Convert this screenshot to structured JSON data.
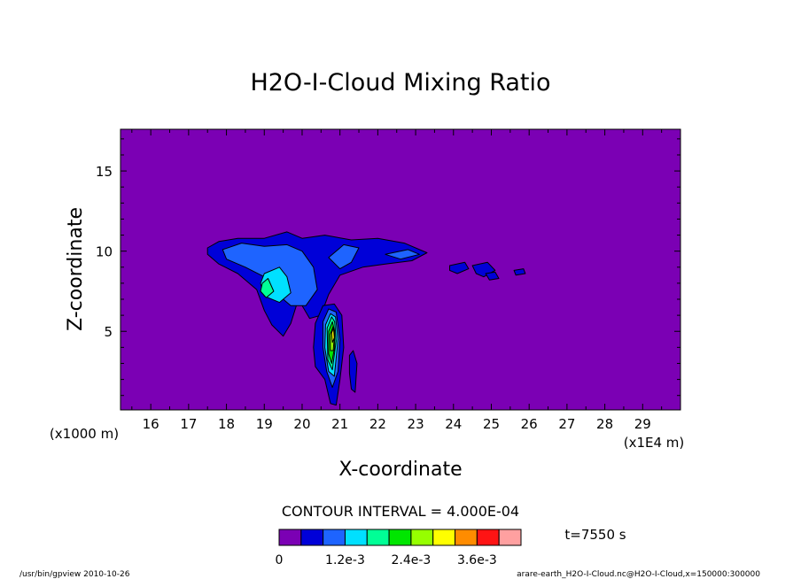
{
  "chart_data": {
    "type": "heatmap",
    "title": "H2O-I-Cloud Mixing Ratio",
    "xlabel": "X-coordinate",
    "ylabel": "Z-coordinate",
    "x_unit_label": "(x1E4 m)",
    "y_unit_label": "(x1000 m)",
    "xlim": [
      15.2,
      30.0
    ],
    "ylim": [
      0.1,
      17.6
    ],
    "x_ticks": [
      16,
      17,
      18,
      19,
      20,
      21,
      22,
      23,
      24,
      25,
      26,
      27,
      28,
      29
    ],
    "y_ticks": [
      5,
      10,
      15
    ],
    "contour_interval_label": "CONTOUR INTERVAL = 4.000E-04",
    "time_label": "t=7550 s",
    "colorbar": {
      "levels": [
        0,
        0.0004,
        0.0008,
        0.0012,
        0.0016,
        0.002,
        0.0024,
        0.0028,
        0.0032,
        0.0036,
        0.004
      ],
      "colors": [
        "#7b00b4",
        "#0000d8",
        "#1e64ff",
        "#00e0ff",
        "#00ff96",
        "#00e600",
        "#96ff00",
        "#ffff00",
        "#ff8c00",
        "#ff1414",
        "#ffa0a0"
      ],
      "tick_labels": [
        {
          "value": 0,
          "label": "0"
        },
        {
          "value": 0.0012,
          "label": "1.2e-3"
        },
        {
          "value": 0.0024,
          "label": "2.4e-3"
        },
        {
          "value": 0.0036,
          "label": "3.6e-3"
        }
      ]
    },
    "regions": [
      {
        "name": "anvil-main",
        "level": 1,
        "points": [
          [
            17.5,
            10.2
          ],
          [
            17.8,
            10.6
          ],
          [
            18.3,
            10.8
          ],
          [
            19.0,
            10.8
          ],
          [
            19.6,
            11.2
          ],
          [
            20.0,
            10.8
          ],
          [
            20.6,
            11.0
          ],
          [
            21.3,
            10.7
          ],
          [
            22.0,
            10.8
          ],
          [
            22.7,
            10.5
          ],
          [
            23.3,
            9.9
          ],
          [
            22.9,
            9.4
          ],
          [
            22.2,
            9.2
          ],
          [
            21.6,
            9.0
          ],
          [
            21.0,
            8.5
          ],
          [
            20.7,
            7.3
          ],
          [
            20.5,
            6.0
          ],
          [
            20.2,
            5.8
          ],
          [
            19.9,
            7.0
          ],
          [
            19.7,
            5.5
          ],
          [
            19.5,
            4.7
          ],
          [
            19.2,
            5.4
          ],
          [
            19.0,
            6.3
          ],
          [
            18.8,
            7.6
          ],
          [
            18.3,
            8.6
          ],
          [
            17.8,
            9.2
          ],
          [
            17.5,
            9.8
          ]
        ]
      },
      {
        "name": "anvil-inner",
        "level": 2,
        "points": [
          [
            17.9,
            10.1
          ],
          [
            18.4,
            10.5
          ],
          [
            19.0,
            10.3
          ],
          [
            19.6,
            10.4
          ],
          [
            20.0,
            10.0
          ],
          [
            20.3,
            9.0
          ],
          [
            20.4,
            7.6
          ],
          [
            20.1,
            6.6
          ],
          [
            19.7,
            6.6
          ],
          [
            19.3,
            7.4
          ],
          [
            19.0,
            8.4
          ],
          [
            18.5,
            9.0
          ],
          [
            18.0,
            9.5
          ]
        ]
      },
      {
        "name": "anvil-right-inner",
        "level": 2,
        "points": [
          [
            20.7,
            9.6
          ],
          [
            21.1,
            10.4
          ],
          [
            21.5,
            10.2
          ],
          [
            21.3,
            9.3
          ],
          [
            21.0,
            8.9
          ]
        ]
      },
      {
        "name": "anvil-far-inner",
        "level": 2,
        "points": [
          [
            22.2,
            9.8
          ],
          [
            22.8,
            10.1
          ],
          [
            23.1,
            9.8
          ],
          [
            22.6,
            9.5
          ]
        ]
      },
      {
        "name": "core-cyan",
        "level": 3,
        "points": [
          [
            19.0,
            8.6
          ],
          [
            19.4,
            9.0
          ],
          [
            19.6,
            8.4
          ],
          [
            19.7,
            7.4
          ],
          [
            19.4,
            6.8
          ],
          [
            19.0,
            7.2
          ],
          [
            18.9,
            8.0
          ]
        ]
      },
      {
        "name": "core-green",
        "level": 4,
        "points": [
          [
            18.95,
            8.0
          ],
          [
            19.1,
            8.3
          ],
          [
            19.25,
            7.5
          ],
          [
            19.05,
            7.1
          ],
          [
            18.9,
            7.5
          ]
        ]
      },
      {
        "name": "tower-outer",
        "level": 1,
        "points": [
          [
            20.35,
            5.5
          ],
          [
            20.55,
            6.6
          ],
          [
            20.85,
            6.7
          ],
          [
            21.05,
            6.0
          ],
          [
            21.1,
            4.0
          ],
          [
            21.0,
            2.0
          ],
          [
            20.9,
            0.4
          ],
          [
            20.75,
            0.5
          ],
          [
            20.6,
            2.0
          ],
          [
            20.35,
            2.8
          ],
          [
            20.3,
            4.0
          ]
        ]
      },
      {
        "name": "tower-l2",
        "level": 2,
        "points": [
          [
            20.55,
            5.6
          ],
          [
            20.7,
            6.4
          ],
          [
            20.9,
            6.2
          ],
          [
            21.0,
            4.5
          ],
          [
            20.95,
            2.5
          ],
          [
            20.8,
            1.5
          ],
          [
            20.65,
            2.5
          ],
          [
            20.55,
            4.0
          ]
        ]
      },
      {
        "name": "tower-l3",
        "level": 3,
        "points": [
          [
            20.62,
            5.4
          ],
          [
            20.75,
            6.1
          ],
          [
            20.88,
            5.9
          ],
          [
            20.95,
            4.5
          ],
          [
            20.85,
            2.2
          ],
          [
            20.7,
            2.5
          ],
          [
            20.6,
            4.0
          ]
        ]
      },
      {
        "name": "tower-l4",
        "level": 4,
        "points": [
          [
            20.66,
            5.2
          ],
          [
            20.78,
            5.9
          ],
          [
            20.86,
            5.6
          ],
          [
            20.9,
            4.4
          ],
          [
            20.8,
            2.6
          ],
          [
            20.68,
            3.2
          ]
        ]
      },
      {
        "name": "tower-l5",
        "level": 5,
        "points": [
          [
            20.7,
            5.0
          ],
          [
            20.8,
            5.6
          ],
          [
            20.86,
            5.0
          ],
          [
            20.86,
            4.0
          ],
          [
            20.78,
            3.0
          ],
          [
            20.7,
            3.6
          ]
        ]
      },
      {
        "name": "tower-l6",
        "level": 6,
        "points": [
          [
            20.74,
            4.8
          ],
          [
            20.82,
            5.3
          ],
          [
            20.85,
            4.6
          ],
          [
            20.82,
            3.8
          ],
          [
            20.75,
            3.8
          ]
        ]
      },
      {
        "name": "tower-l7",
        "level": 7,
        "points": [
          [
            20.78,
            4.9
          ],
          [
            20.83,
            5.2
          ],
          [
            20.85,
            4.6
          ],
          [
            20.8,
            4.3
          ]
        ]
      },
      {
        "name": "small-tower",
        "level": 1,
        "points": [
          [
            21.25,
            3.5
          ],
          [
            21.35,
            3.8
          ],
          [
            21.45,
            3.0
          ],
          [
            21.4,
            1.2
          ],
          [
            21.3,
            1.4
          ],
          [
            21.25,
            2.4
          ]
        ]
      },
      {
        "name": "blob-24",
        "level": 1,
        "points": [
          [
            23.9,
            9.1
          ],
          [
            24.3,
            9.3
          ],
          [
            24.4,
            8.9
          ],
          [
            24.1,
            8.6
          ],
          [
            23.9,
            8.8
          ]
        ]
      },
      {
        "name": "blob-25",
        "level": 1,
        "points": [
          [
            24.5,
            9.1
          ],
          [
            24.9,
            9.3
          ],
          [
            25.1,
            8.8
          ],
          [
            24.8,
            8.4
          ],
          [
            24.6,
            8.6
          ]
        ]
      },
      {
        "name": "blob-25b",
        "level": 1,
        "points": [
          [
            24.85,
            8.6
          ],
          [
            25.1,
            8.7
          ],
          [
            25.2,
            8.3
          ],
          [
            24.95,
            8.2
          ]
        ]
      },
      {
        "name": "blob-26",
        "level": 1,
        "points": [
          [
            25.6,
            8.8
          ],
          [
            25.85,
            8.9
          ],
          [
            25.9,
            8.6
          ],
          [
            25.65,
            8.5
          ]
        ]
      }
    ]
  },
  "footer": {
    "left": "/usr/bin/gpview   2010-10-26",
    "right": "arare-earth_H2O-I-Cloud.nc@H2O-I-Cloud,x=150000:300000"
  }
}
